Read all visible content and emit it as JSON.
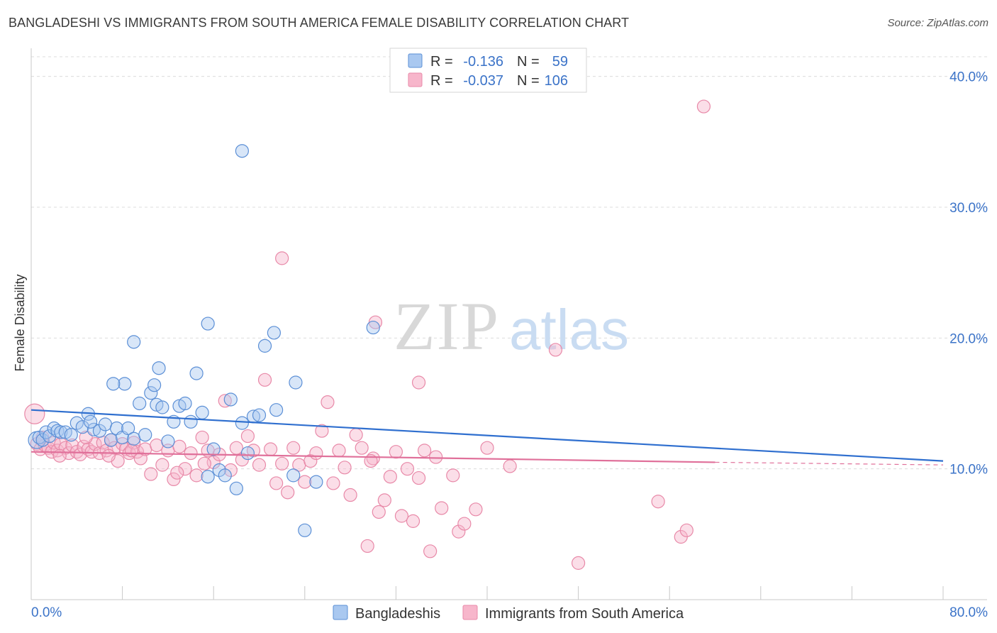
{
  "title": "BANGLADESHI VS IMMIGRANTS FROM SOUTH AMERICA FEMALE DISABILITY CORRELATION CHART",
  "source": "Source: ZipAtlas.com",
  "watermark": {
    "zip": "ZIP",
    "atlas": "atlas"
  },
  "colors": {
    "blue_fill": "#a9c8f0",
    "blue_stroke": "#5b8fd6",
    "blue_line": "#2f6fcf",
    "pink_fill": "#f7b6cb",
    "pink_stroke": "#e889a8",
    "pink_line": "#e0709a",
    "accent_text": "#3b73c8"
  },
  "legend": {
    "rows": [
      {
        "r_label": "R =",
        "r_value": "-0.136",
        "n_label": "N =",
        "n_value": "59"
      },
      {
        "r_label": "R =",
        "r_value": "-0.037",
        "n_label": "N =",
        "n_value": "106"
      }
    ]
  },
  "chart_data": {
    "type": "scatter",
    "title": "BANGLADESHI VS IMMIGRANTS FROM SOUTH AMERICA FEMALE DISABILITY CORRELATION CHART",
    "xlabel": "",
    "ylabel": "Female Disability",
    "xlim": [
      0,
      80
    ],
    "ylim": [
      0,
      41.5
    ],
    "x_tick_labels": [
      "0.0%",
      "80.0%"
    ],
    "y_ticks": [
      10,
      20,
      30,
      40
    ],
    "y_tick_labels": [
      "10.0%",
      "20.0%",
      "30.0%",
      "40.0%"
    ],
    "grid": "horizontal dashed",
    "legend_position": "bottom-center",
    "series": [
      {
        "name": "Bangladeshis",
        "trend": {
          "x0": 0,
          "y0": 14.5,
          "x1": 80,
          "y1": 10.6
        },
        "points": [
          [
            0.5,
            12.2
          ],
          [
            0.7,
            12.4
          ],
          [
            1,
            12.2
          ],
          [
            1.3,
            12.8
          ],
          [
            1.6,
            12.5
          ],
          [
            2,
            13.1
          ],
          [
            2.3,
            12.9
          ],
          [
            2.6,
            12.8
          ],
          [
            3,
            12.8
          ],
          [
            3.5,
            12.6
          ],
          [
            4,
            13.5
          ],
          [
            4.5,
            13.2
          ],
          [
            5,
            14.2
          ],
          [
            5.5,
            13.0
          ],
          [
            6,
            12.9
          ],
          [
            5.2,
            13.6
          ],
          [
            6.5,
            13.4
          ],
          [
            7,
            12.2
          ],
          [
            7.5,
            13.1
          ],
          [
            8,
            12.4
          ],
          [
            8.5,
            13.1
          ],
          [
            9,
            12.3
          ],
          [
            9.5,
            15.0
          ],
          [
            10,
            12.6
          ],
          [
            10.5,
            15.8
          ],
          [
            11,
            14.9
          ],
          [
            11.5,
            14.7
          ],
          [
            12,
            12.1
          ],
          [
            12.5,
            13.6
          ],
          [
            13,
            14.8
          ],
          [
            13.5,
            15.0
          ],
          [
            14,
            13.6
          ],
          [
            9,
            19.7
          ],
          [
            8.2,
            16.5
          ],
          [
            7.2,
            16.5
          ],
          [
            15.5,
            21.1
          ],
          [
            15,
            14.3
          ],
          [
            14.5,
            17.3
          ],
          [
            11.2,
            17.7
          ],
          [
            10.8,
            16.4
          ],
          [
            16,
            11.5
          ],
          [
            16.5,
            9.9
          ],
          [
            17,
            9.5
          ],
          [
            17.5,
            15.3
          ],
          [
            18,
            8.5
          ],
          [
            18.5,
            13.5
          ],
          [
            19,
            11.2
          ],
          [
            19.5,
            14.0
          ],
          [
            15.5,
            9.4
          ],
          [
            20,
            14.1
          ],
          [
            20.5,
            19.4
          ],
          [
            21.3,
            20.4
          ],
          [
            21.5,
            14.5
          ],
          [
            23,
            9.5
          ],
          [
            23.2,
            16.6
          ],
          [
            18.5,
            34.3
          ],
          [
            24,
            5.3
          ],
          [
            25,
            9.0
          ],
          [
            30,
            20.8
          ]
        ]
      },
      {
        "name": "Immigrants from South America",
        "trend": {
          "x0": 0,
          "y0": 11.3,
          "x1": 60,
          "y1": 10.5,
          "dash_to_x": 80,
          "dash_to_y": 10.3
        },
        "points": [
          [
            0.3,
            14.2
          ],
          [
            0.5,
            11.9
          ],
          [
            0.8,
            11.5
          ],
          [
            1,
            12.4
          ],
          [
            1.2,
            11.8
          ],
          [
            1.5,
            11.6
          ],
          [
            1.8,
            11.3
          ],
          [
            2,
            12.0
          ],
          [
            2.3,
            11.4
          ],
          [
            2.6,
            11.9
          ],
          [
            3,
            11.6
          ],
          [
            3.3,
            11.2
          ],
          [
            3.6,
            11.8
          ],
          [
            4,
            11.3
          ],
          [
            4.3,
            11.1
          ],
          [
            4.6,
            11.7
          ],
          [
            5,
            11.5
          ],
          [
            5.3,
            11.3
          ],
          [
            5.6,
            11.9
          ],
          [
            6,
            11.2
          ],
          [
            6.3,
            12.0
          ],
          [
            6.6,
            11.4
          ],
          [
            7,
            12.2
          ],
          [
            7.3,
            11.6
          ],
          [
            7.6,
            10.6
          ],
          [
            8,
            11.9
          ],
          [
            8.3,
            11.5
          ],
          [
            8.6,
            11.2
          ],
          [
            9,
            12.0
          ],
          [
            9.3,
            11.3
          ],
          [
            9.6,
            10.8
          ],
          [
            10,
            11.5
          ],
          [
            10.5,
            9.6
          ],
          [
            11,
            11.8
          ],
          [
            11.5,
            10.3
          ],
          [
            12,
            11.4
          ],
          [
            12.5,
            9.2
          ],
          [
            13,
            11.7
          ],
          [
            13.5,
            10.0
          ],
          [
            14,
            11.2
          ],
          [
            14.5,
            9.5
          ],
          [
            15,
            12.4
          ],
          [
            15.5,
            11.4
          ],
          [
            16,
            10.5
          ],
          [
            16.5,
            11.1
          ],
          [
            17,
            15.2
          ],
          [
            17.5,
            9.9
          ],
          [
            18,
            11.6
          ],
          [
            18.5,
            10.7
          ],
          [
            19,
            12.5
          ],
          [
            19.5,
            11.4
          ],
          [
            20,
            10.3
          ],
          [
            20.5,
            16.8
          ],
          [
            21,
            11.5
          ],
          [
            21.5,
            8.9
          ],
          [
            22,
            10.4
          ],
          [
            22.5,
            8.2
          ],
          [
            23,
            11.6
          ],
          [
            23.5,
            10.3
          ],
          [
            24,
            9.0
          ],
          [
            24.5,
            10.6
          ],
          [
            25,
            11.2
          ],
          [
            25.5,
            12.9
          ],
          [
            26,
            15.1
          ],
          [
            26.5,
            8.9
          ],
          [
            27,
            11.4
          ],
          [
            27.5,
            10.1
          ],
          [
            28,
            8.0
          ],
          [
            28.5,
            12.6
          ],
          [
            29,
            11.6
          ],
          [
            29.5,
            4.1
          ],
          [
            30,
            10.8
          ],
          [
            30.5,
            6.7
          ],
          [
            31,
            7.6
          ],
          [
            31.5,
            9.4
          ],
          [
            32,
            11.3
          ],
          [
            32.5,
            6.4
          ],
          [
            33,
            10.0
          ],
          [
            33.5,
            6.0
          ],
          [
            34,
            9.3
          ],
          [
            34.5,
            11.4
          ],
          [
            35,
            3.7
          ],
          [
            35.5,
            10.9
          ],
          [
            36,
            7.0
          ],
          [
            37,
            9.5
          ],
          [
            37.5,
            5.2
          ],
          [
            38,
            5.8
          ],
          [
            39,
            6.9
          ],
          [
            40,
            11.6
          ],
          [
            42,
            10.2
          ],
          [
            46,
            19.1
          ],
          [
            48,
            2.8
          ],
          [
            55,
            7.5
          ],
          [
            57,
            4.8
          ],
          [
            30.2,
            21.2
          ],
          [
            29.8,
            10.6
          ],
          [
            22,
            26.1
          ],
          [
            34,
            16.6
          ],
          [
            57.5,
            5.3
          ],
          [
            59,
            37.7
          ],
          [
            2.5,
            11.0
          ],
          [
            4.8,
            12.4
          ],
          [
            6.8,
            11.0
          ],
          [
            8.8,
            11.4
          ],
          [
            12.8,
            9.7
          ],
          [
            15.2,
            10.4
          ]
        ]
      }
    ]
  }
}
